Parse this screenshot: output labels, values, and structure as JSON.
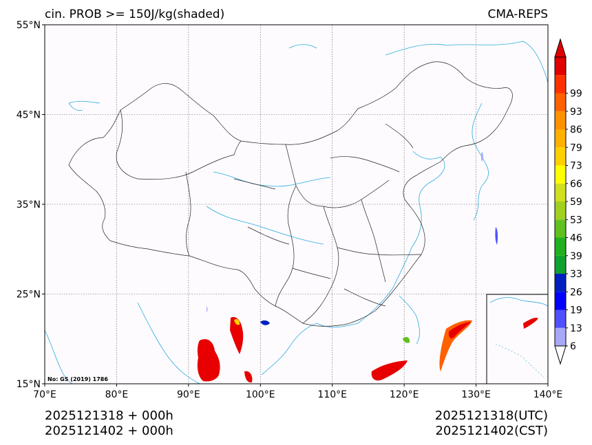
{
  "header": {
    "title": "cin. PROB >= 150J/kg(shaded)",
    "model": "CMA-REPS"
  },
  "map": {
    "lon_range": [
      70,
      140
    ],
    "lat_range": [
      15,
      55
    ],
    "lat_ticks": [
      "55°N",
      "45°N",
      "35°N",
      "25°N",
      "15°N"
    ],
    "lon_ticks": [
      "70°E",
      "80°E",
      "90°E",
      "100°E",
      "110°E",
      "120°E",
      "130°E",
      "140°E"
    ],
    "review_number": "No: GS (2019) 1786",
    "gridlines": true
  },
  "colorbar": {
    "labels": [
      "6",
      "13",
      "19",
      "26",
      "33",
      "39",
      "46",
      "53",
      "59",
      "66",
      "73",
      "79",
      "86",
      "93",
      "99"
    ],
    "colors": [
      "#a8a8f8",
      "#5050ff",
      "#0000ff",
      "#0020c0",
      "#10a030",
      "#20b020",
      "#60c020",
      "#a0d020",
      "#d0e020",
      "#ffff00",
      "#ffd000",
      "#ffb000",
      "#ff9000",
      "#ff6000",
      "#ff3000",
      "#e00000"
    ],
    "extend": "both"
  },
  "footer": {
    "init_line1": "2025121318  +  000h",
    "init_line2": "2025121402  +  000h",
    "utc": "2025121318(UTC)",
    "cst": "2025121402(CST)"
  }
}
